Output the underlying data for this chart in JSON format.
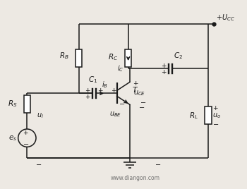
{
  "bg_color": "#ede9e3",
  "line_color": "#1a1a1a",
  "watermark": "www.diangon.com"
}
